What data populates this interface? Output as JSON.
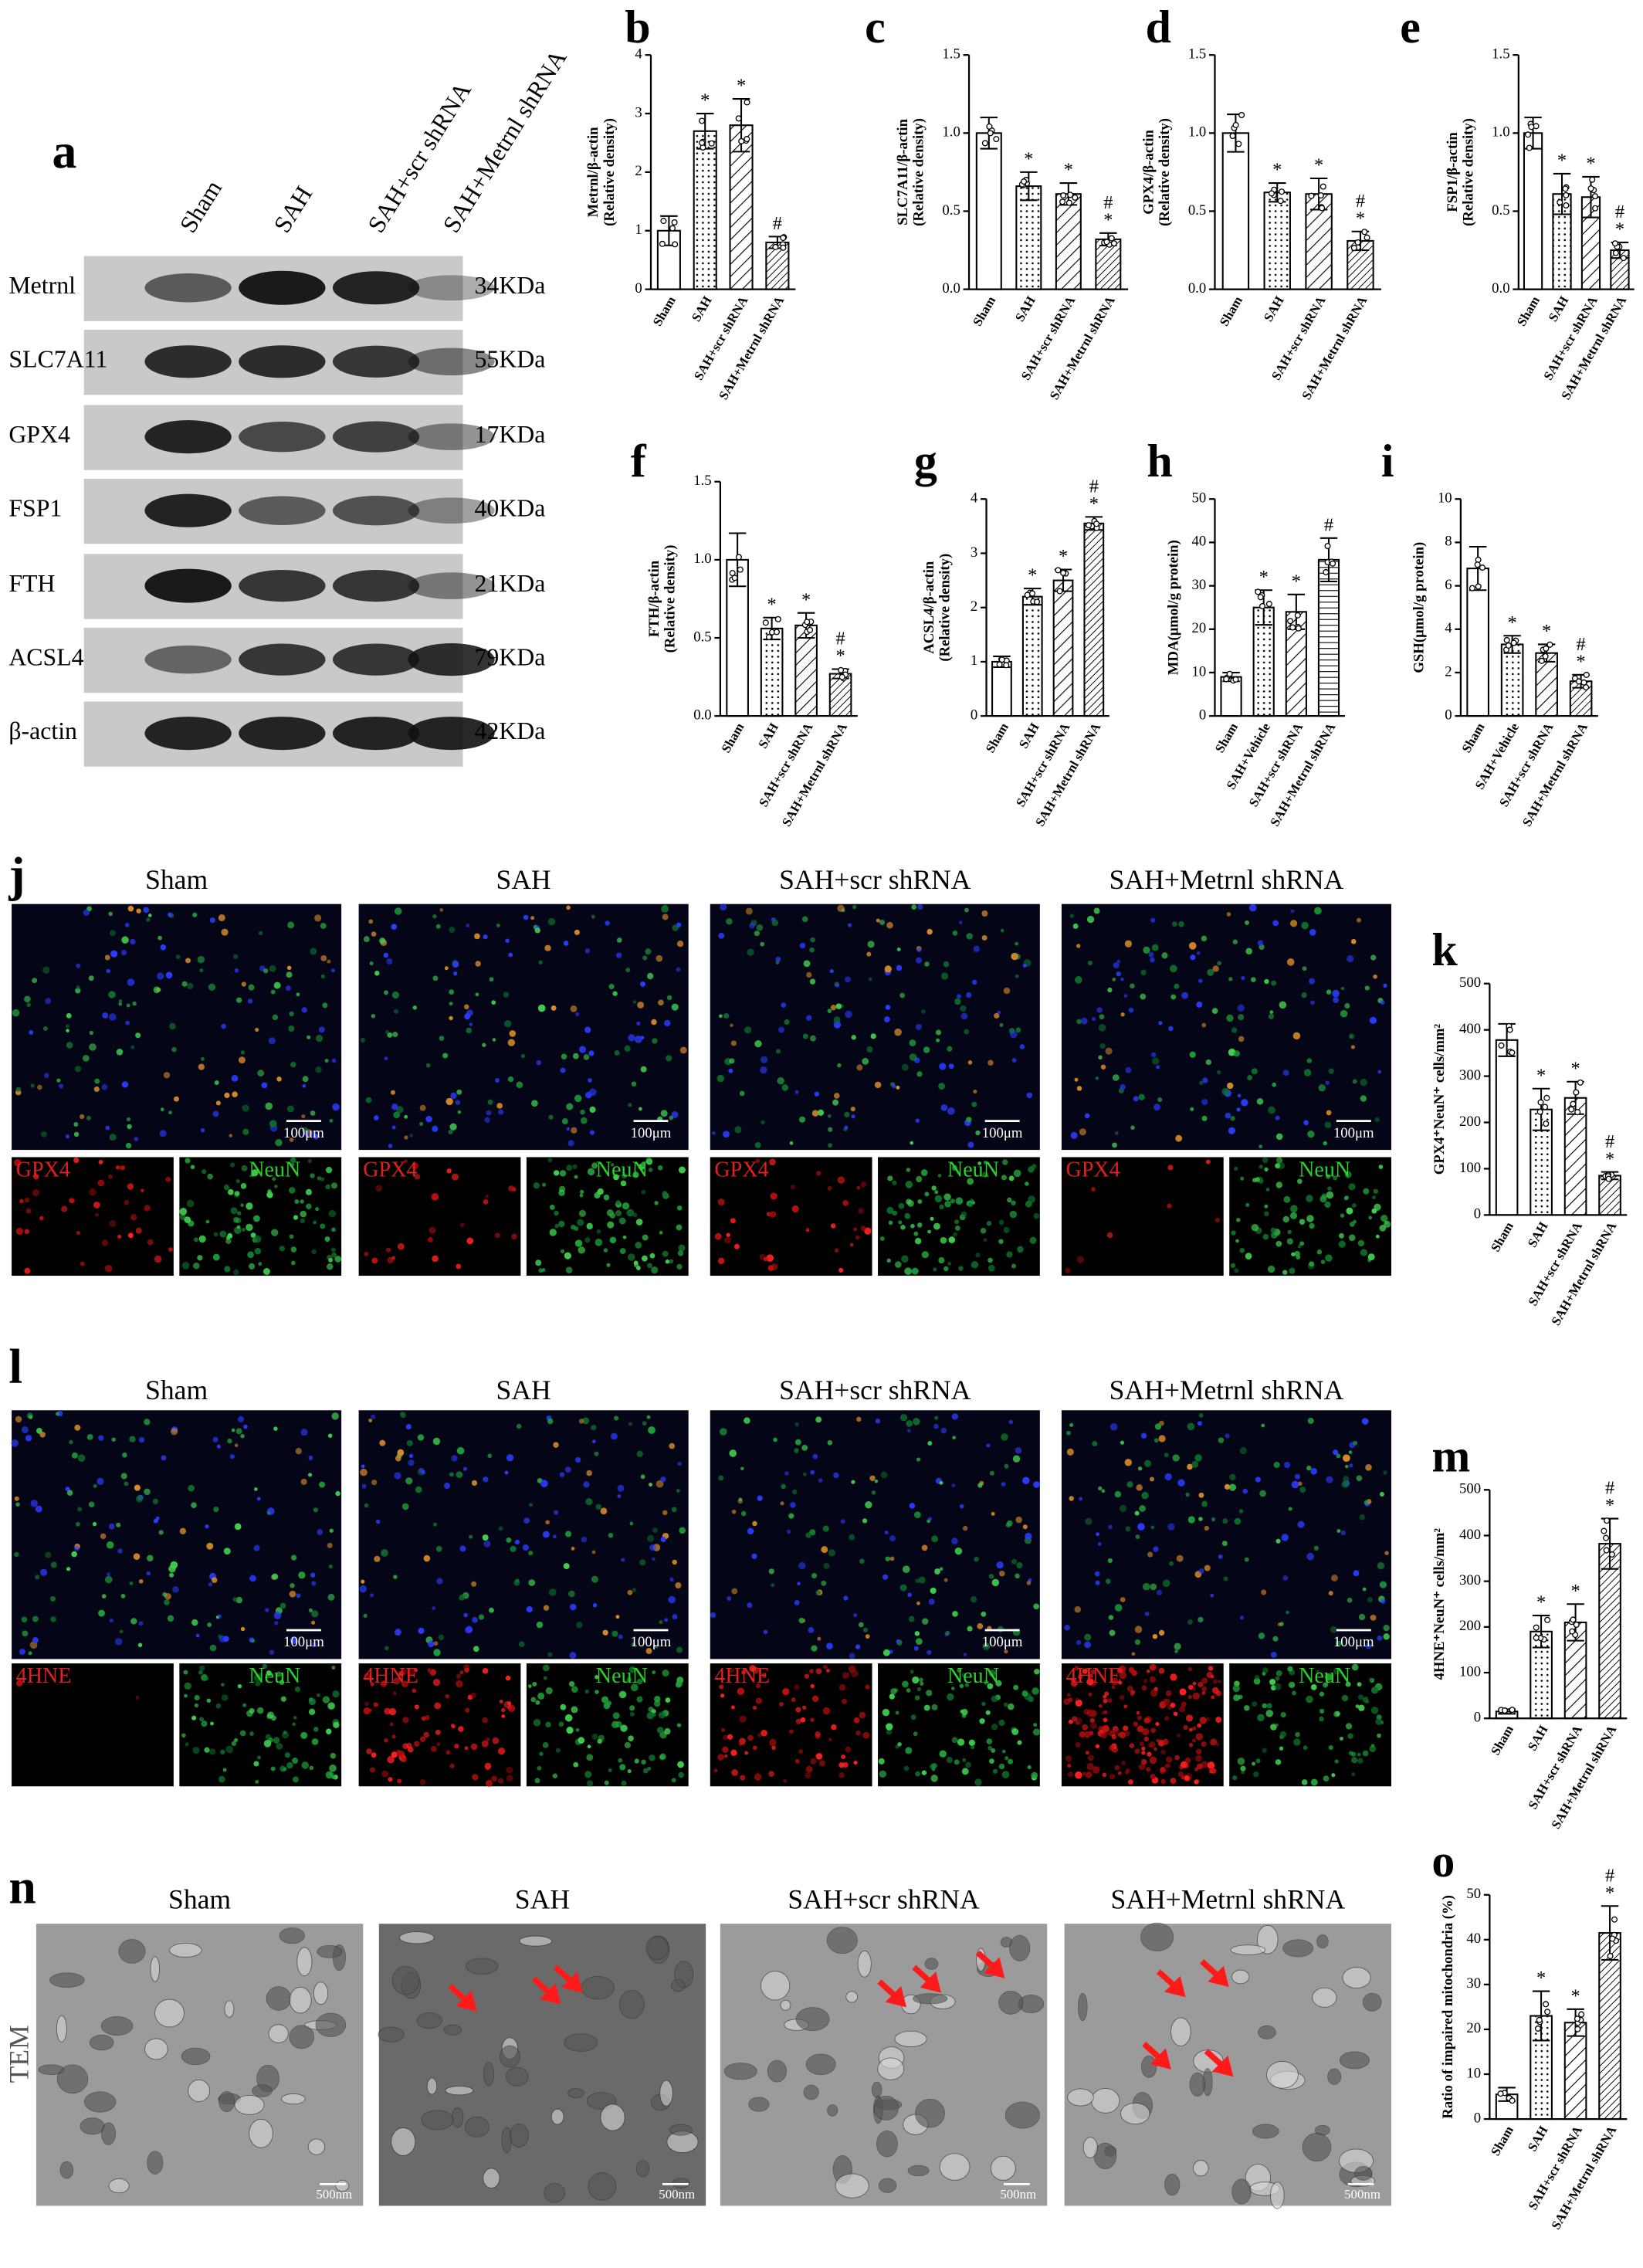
{
  "blot": {
    "label": "a",
    "lanes": [
      "Sham",
      "SAH",
      "SAH+scr shRNA",
      "SAH+Metrnl shRNA"
    ],
    "proteins": [
      "Metrnl",
      "SLC7A11",
      "GPX4",
      "FSP1",
      "FTH",
      "ACSL4",
      "β-actin"
    ],
    "sizes": [
      "34KDa",
      "55KDa",
      "17KDa",
      "40KDa",
      "21KDa",
      "79KDa",
      "42KDa"
    ]
  },
  "chart_data": [
    {
      "type": "bar",
      "label": "b",
      "ylabel": [
        "Metrnl/β-actin",
        "(Relative density)"
      ],
      "categories": [
        "Sham",
        "SAH",
        "SAH+scr shRNA",
        "SAH+Metrnl shRNA"
      ],
      "values": [
        1.0,
        2.7,
        2.8,
        0.8
      ],
      "errors": [
        0.25,
        0.3,
        0.45,
        0.1
      ],
      "markers": [
        [],
        [
          "*"
        ],
        [
          "*"
        ],
        [
          "#"
        ]
      ],
      "ylim": [
        0,
        4
      ],
      "yticks": [
        0,
        1,
        2,
        3,
        4
      ],
      "patterns": [
        "none",
        "dots",
        "hatch",
        "hatch-dense"
      ]
    },
    {
      "type": "bar",
      "label": "c",
      "ylabel": [
        "SLC7A11/β-actin",
        "(Relative density)"
      ],
      "categories": [
        "Sham",
        "SAH",
        "SAH+scr shRNA",
        "SAH+Metrnl shRNA"
      ],
      "values": [
        1.0,
        0.66,
        0.61,
        0.32
      ],
      "errors": [
        0.1,
        0.09,
        0.07,
        0.04
      ],
      "markers": [
        [],
        [
          "*"
        ],
        [
          "*"
        ],
        [
          "#",
          "*"
        ]
      ],
      "ylim": [
        0,
        1.5
      ],
      "yticks": [
        {
          "value": 0,
          "label": "0.0"
        },
        0.5,
        {
          "value": 1,
          "label": "1.0"
        },
        1.5
      ],
      "patterns": [
        "none",
        "dots",
        "hatch",
        "hatch-dense"
      ]
    },
    {
      "type": "bar",
      "label": "d",
      "ylabel": [
        "GPX4/β-actin",
        "(Relative density)"
      ],
      "categories": [
        "Sham",
        "SAH",
        "SAH+scr shRNA",
        "SAH+Metrnl shRNA"
      ],
      "values": [
        1.0,
        0.62,
        0.61,
        0.31
      ],
      "errors": [
        0.12,
        0.06,
        0.1,
        0.06
      ],
      "markers": [
        [],
        [
          "*"
        ],
        [
          "*"
        ],
        [
          "#",
          "*"
        ]
      ],
      "ylim": [
        0,
        1.5
      ],
      "yticks": [
        {
          "value": 0,
          "label": "0.0"
        },
        0.5,
        {
          "value": 1,
          "label": "1.0"
        },
        1.5
      ],
      "patterns": [
        "none",
        "dots",
        "hatch",
        "hatch-dense"
      ]
    },
    {
      "type": "bar",
      "label": "e",
      "ylabel": [
        "FSP1/β-actin",
        "(Relative density)"
      ],
      "categories": [
        "Sham",
        "SAH",
        "SAH+scr shRNA",
        "SAH+Metrnl shRNA"
      ],
      "values": [
        1.0,
        0.61,
        0.59,
        0.25
      ],
      "errors": [
        0.1,
        0.13,
        0.13,
        0.05
      ],
      "markers": [
        [],
        [
          "*"
        ],
        [
          "*"
        ],
        [
          "#",
          "*"
        ]
      ],
      "ylim": [
        0,
        1.5
      ],
      "yticks": [
        {
          "value": 0,
          "label": "0.0"
        },
        0.5,
        {
          "value": 1,
          "label": "1.0"
        },
        1.5
      ],
      "patterns": [
        "none",
        "dots",
        "hatch",
        "hatch-dense"
      ]
    },
    {
      "type": "bar",
      "label": "f",
      "ylabel": [
        "FTH/β-actin",
        "(Relative density)"
      ],
      "categories": [
        "Sham",
        "SAH",
        "SAH+scr shRNA",
        "SAH+Metrnl shRNA"
      ],
      "values": [
        1.0,
        0.56,
        0.58,
        0.27
      ],
      "errors": [
        0.17,
        0.07,
        0.08,
        0.03
      ],
      "markers": [
        [],
        [
          "*"
        ],
        [
          "*"
        ],
        [
          "#",
          "*"
        ]
      ],
      "ylim": [
        0,
        1.5
      ],
      "yticks": [
        {
          "value": 0,
          "label": "0.0"
        },
        0.5,
        {
          "value": 1,
          "label": "1.0"
        },
        1.5
      ],
      "patterns": [
        "none",
        "dots",
        "hatch",
        "hatch-dense"
      ]
    },
    {
      "type": "bar",
      "label": "g",
      "ylabel": [
        "ACSL4/β-actin",
        "(Relative density)"
      ],
      "categories": [
        "Sham",
        "SAH",
        "SAH+scr shRNA",
        "SAH+Metrnl shRNA"
      ],
      "values": [
        1.0,
        2.2,
        2.5,
        3.55
      ],
      "errors": [
        0.1,
        0.15,
        0.2,
        0.12
      ],
      "markers": [
        [],
        [
          "*"
        ],
        [
          "*"
        ],
        [
          "#",
          "*"
        ]
      ],
      "ylim": [
        0,
        4
      ],
      "yticks": [
        0,
        1,
        2,
        3,
        4
      ],
      "patterns": [
        "none",
        "dots",
        "hatch",
        "hatch-dense"
      ]
    },
    {
      "type": "bar",
      "label": "h",
      "ylabel": [
        "MDA(μmol/g protein)"
      ],
      "categories": [
        "Sham",
        "SAH+Vehicle",
        "SAH+scr shRNA",
        "SAH+Metrnl shRNA"
      ],
      "values": [
        9,
        25,
        24,
        36
      ],
      "errors": [
        1,
        4,
        4,
        5
      ],
      "markers": [
        [],
        [
          "*"
        ],
        [
          "*"
        ],
        [
          "#"
        ]
      ],
      "ylim": [
        0,
        50
      ],
      "yticks": [
        0,
        10,
        20,
        30,
        40,
        50
      ],
      "patterns": [
        "none",
        "dots",
        "hatch",
        "hlines"
      ]
    },
    {
      "type": "bar",
      "label": "i",
      "ylabel": [
        "GSH(μmol/g protein)"
      ],
      "categories": [
        "Sham",
        "SAH+Vehicle",
        "SAH+scr shRNA",
        "SAH+Metrnl shRNA"
      ],
      "values": [
        6.8,
        3.3,
        2.9,
        1.6
      ],
      "errors": [
        1,
        0.4,
        0.4,
        0.3
      ],
      "markers": [
        [],
        [
          "*"
        ],
        [
          "*"
        ],
        [
          "#",
          "*"
        ]
      ],
      "ylim": [
        0,
        10
      ],
      "yticks": [
        0,
        2,
        4,
        6,
        8,
        10
      ],
      "patterns": [
        "none",
        "dots",
        "hatch",
        "hatch-dense"
      ]
    },
    {
      "type": "bar",
      "label": "k",
      "ylabel": [
        "GPX4⁺NeuN⁺ cells/mm²"
      ],
      "categories": [
        "Sham",
        "SAH",
        "SAH+scr shRNA",
        "SAH+Metrnl shRNA"
      ],
      "values": [
        378,
        228,
        253,
        85
      ],
      "errors": [
        35,
        45,
        35,
        8
      ],
      "markers": [
        [],
        [
          "*"
        ],
        [
          "*"
        ],
        [
          "#",
          "*"
        ]
      ],
      "ylim": [
        0,
        500
      ],
      "yticks": [
        0,
        100,
        200,
        300,
        400,
        500
      ],
      "patterns": [
        "none",
        "dots",
        "hatch",
        "hatch-dense"
      ]
    },
    {
      "type": "bar",
      "label": "m",
      "ylabel": [
        "4HNE⁺NeuN⁺ cells/mm²"
      ],
      "categories": [
        "Sham",
        "SAH",
        "SAH+scr shRNA",
        "SAH+Metrnl shRNA"
      ],
      "values": [
        15,
        190,
        210,
        382
      ],
      "errors": [
        5,
        35,
        40,
        55
      ],
      "markers": [
        [],
        [
          "*"
        ],
        [
          "*"
        ],
        [
          "#",
          "*"
        ]
      ],
      "ylim": [
        0,
        500
      ],
      "yticks": [
        0,
        100,
        200,
        300,
        400,
        500
      ],
      "patterns": [
        "none",
        "dots",
        "hatch",
        "hatch-dense"
      ]
    },
    {
      "type": "bar",
      "label": "o",
      "ylabel": [
        "Ratio of impaired mitochondria (%)"
      ],
      "categories": [
        "Sham",
        "SAH",
        "SAH+scr shRNA",
        "SAH+Metrnl shRNA"
      ],
      "values": [
        5.5,
        23,
        21.5,
        41.5
      ],
      "errors": [
        1.5,
        5.5,
        3,
        6
      ],
      "markers": [
        [],
        [
          "*"
        ],
        [
          "*"
        ],
        [
          "#",
          "*"
        ]
      ],
      "ylim": [
        0,
        50
      ],
      "yticks": [
        0,
        10,
        20,
        30,
        40,
        50
      ],
      "patterns": [
        "none",
        "dots",
        "hatch",
        "hatch-dense"
      ]
    }
  ],
  "if_panels": [
    {
      "label": "j",
      "titles": [
        "Sham",
        "SAH",
        "SAH+scr shRNA",
        "SAH+Metrnl shRNA"
      ],
      "channel": "GPX4",
      "counterstain": "NeuN",
      "scale_bar": "100μm"
    },
    {
      "label": "l",
      "titles": [
        "Sham",
        "SAH",
        "SAH+scr shRNA",
        "SAH+Metrnl shRNA"
      ],
      "channel": "4HNE",
      "counterstain": "NeuN",
      "scale_bar": "100μm"
    }
  ],
  "tem_panel": {
    "label": "n",
    "titles": [
      "Sham",
      "SAH",
      "SAH+scr shRNA",
      "SAH+Metrnl shRNA"
    ],
    "side_label": "TEM",
    "scale_bar": "500nm"
  }
}
